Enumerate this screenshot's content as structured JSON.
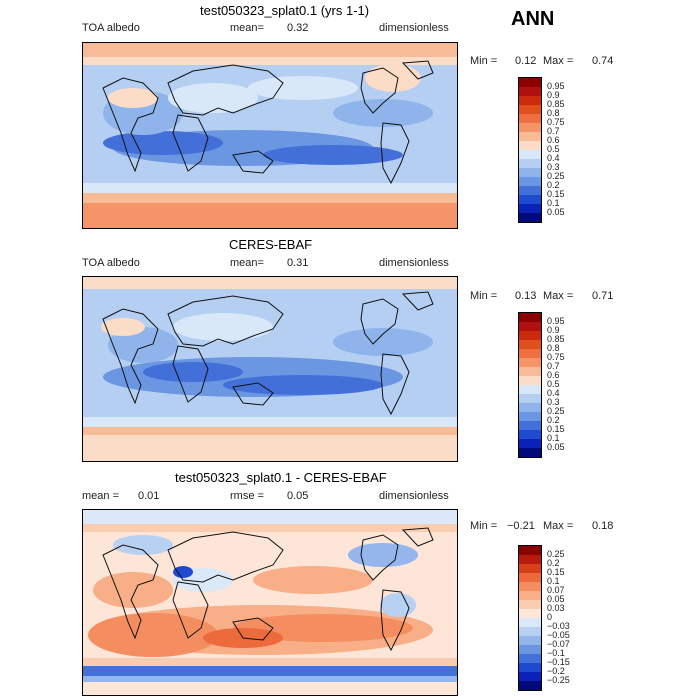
{
  "season": "ANN",
  "panels": [
    {
      "title": "test050323_splat0.1 (yrs 1-1)",
      "left_label": "TOA albedo",
      "mean_label": "mean=",
      "mean_value": "0.32",
      "units": "dimensionless",
      "min_label": "Min =",
      "min_value": "0.12",
      "max_label": "Max =",
      "max_value": "0.74",
      "colorbar": {
        "labels": [
          "0.95",
          "0.9",
          "0.85",
          "0.8",
          "0.75",
          "0.7",
          "0.6",
          "0.5",
          "0.4",
          "0.3",
          "0.25",
          "0.2",
          "0.15",
          "0.1",
          "0.05"
        ],
        "colors": [
          "#8b0000",
          "#b01010",
          "#cc2a0c",
          "#e0501c",
          "#ee7040",
          "#f49468",
          "#f8bb98",
          "#fbdcc6",
          "#d9e8f8",
          "#b4cff2",
          "#8fb4ec",
          "#6a96e2",
          "#4270d8",
          "#1f4bd0",
          "#0a22b8",
          "#000a7a"
        ]
      }
    },
    {
      "title": "CERES-EBAF",
      "left_label": "TOA albedo",
      "mean_label": "mean=",
      "mean_value": "0.31",
      "units": "dimensionless",
      "min_label": "Min =",
      "min_value": "0.13",
      "max_label": "Max =",
      "max_value": "0.71",
      "colorbar": {
        "labels": [
          "0.95",
          "0.9",
          "0.85",
          "0.8",
          "0.75",
          "0.7",
          "0.6",
          "0.5",
          "0.4",
          "0.3",
          "0.25",
          "0.2",
          "0.15",
          "0.1",
          "0.05"
        ],
        "colors": [
          "#8b0000",
          "#b01010",
          "#cc2a0c",
          "#e0501c",
          "#ee7040",
          "#f49468",
          "#f8bb98",
          "#fbdcc6",
          "#d9e8f8",
          "#b4cff2",
          "#8fb4ec",
          "#6a96e2",
          "#4270d8",
          "#1f4bd0",
          "#0a22b8",
          "#000a7a"
        ]
      }
    },
    {
      "title": "test050323_splat0.1 - CERES-EBAF",
      "mean_label": "mean =",
      "mean_value": "0.01",
      "rmse_label": "rmse =",
      "rmse_value": "0.05",
      "units": "dimensionless",
      "min_label": "Min =",
      "min_value": "−0.21",
      "max_label": "Max =",
      "max_value": "0.18",
      "colorbar": {
        "labels": [
          "0.25",
          "0.2",
          "0.15",
          "0.1",
          "0.07",
          "0.05",
          "0.03",
          "0",
          "−0.03",
          "−0.05",
          "−0.07",
          "−0.1",
          "−0.15",
          "−0.2",
          "−0.25"
        ],
        "colors": [
          "#8b0000",
          "#b81a0c",
          "#d8401a",
          "#ec6a3c",
          "#f48e60",
          "#f8ae86",
          "#fbcdb0",
          "#fde6d8",
          "#dbe8f8",
          "#b8d0f2",
          "#94b6ec",
          "#6c96e2",
          "#4272d8",
          "#1e4ad0",
          "#0a22b8",
          "#000a7a"
        ]
      }
    }
  ]
}
